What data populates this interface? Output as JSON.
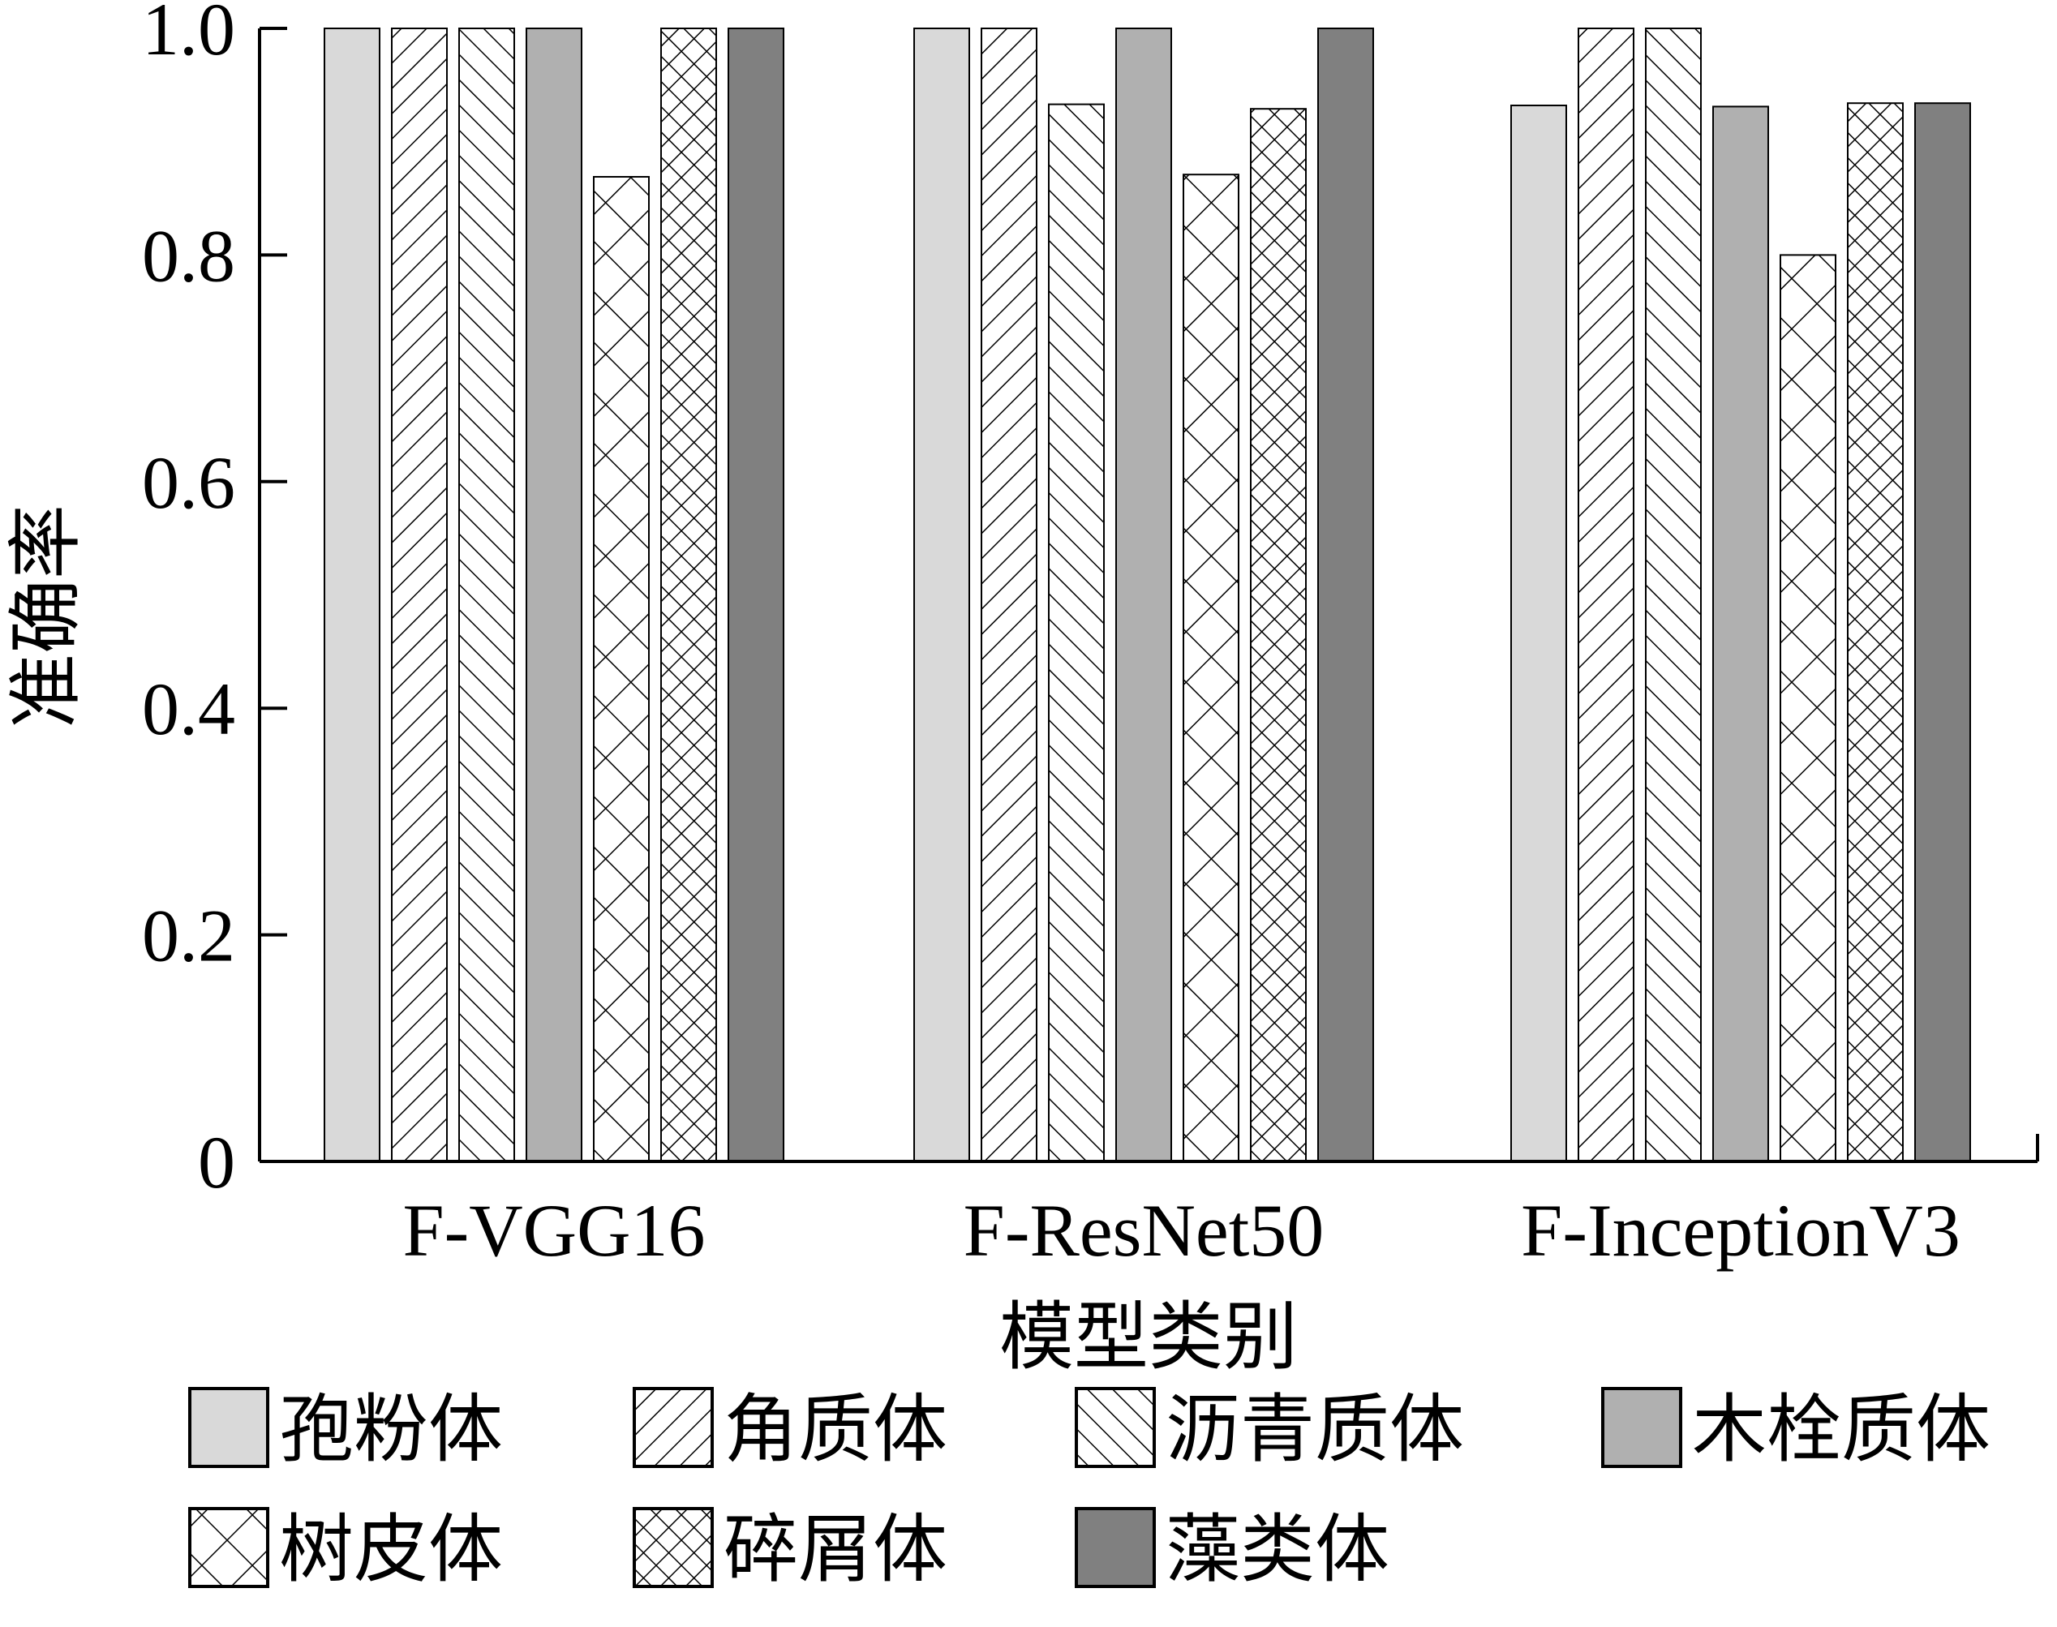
{
  "chart_data": {
    "type": "bar",
    "title": "",
    "xlabel": "模型类别",
    "ylabel": "准确率",
    "ylim": [
      0,
      1.0
    ],
    "yticks": [
      "0",
      "0.2",
      "0.4",
      "0.6",
      "0.8",
      "1.0"
    ],
    "categories": [
      "F-VGG16",
      "F-ResNet50",
      "F-InceptionV3"
    ],
    "grid": false,
    "legend_position": "bottom",
    "series": [
      {
        "name": "孢粉体",
        "values": [
          1.0,
          1.0,
          0.932
        ],
        "color": "#d9d9d9",
        "pattern": "solid"
      },
      {
        "name": "角质体",
        "values": [
          1.0,
          1.0,
          1.0
        ],
        "color": "#ffffff",
        "pattern": "diag-fwd"
      },
      {
        "name": "沥青质体",
        "values": [
          1.0,
          0.933,
          1.0
        ],
        "color": "#ffffff",
        "pattern": "diag-back"
      },
      {
        "name": "木栓质体",
        "values": [
          1.0,
          1.0,
          0.931
        ],
        "color": "#b0b0b0",
        "pattern": "solid"
      },
      {
        "name": "树皮体",
        "values": [
          0.869,
          0.871,
          0.8
        ],
        "color": "#ffffff",
        "pattern": "cross-wide"
      },
      {
        "name": "碎屑体",
        "values": [
          1.0,
          0.929,
          0.934
        ],
        "color": "#ffffff",
        "pattern": "cross-dense"
      },
      {
        "name": "藻类体",
        "values": [
          1.0,
          1.0,
          0.934
        ],
        "color": "#808080",
        "pattern": "solid"
      }
    ]
  }
}
